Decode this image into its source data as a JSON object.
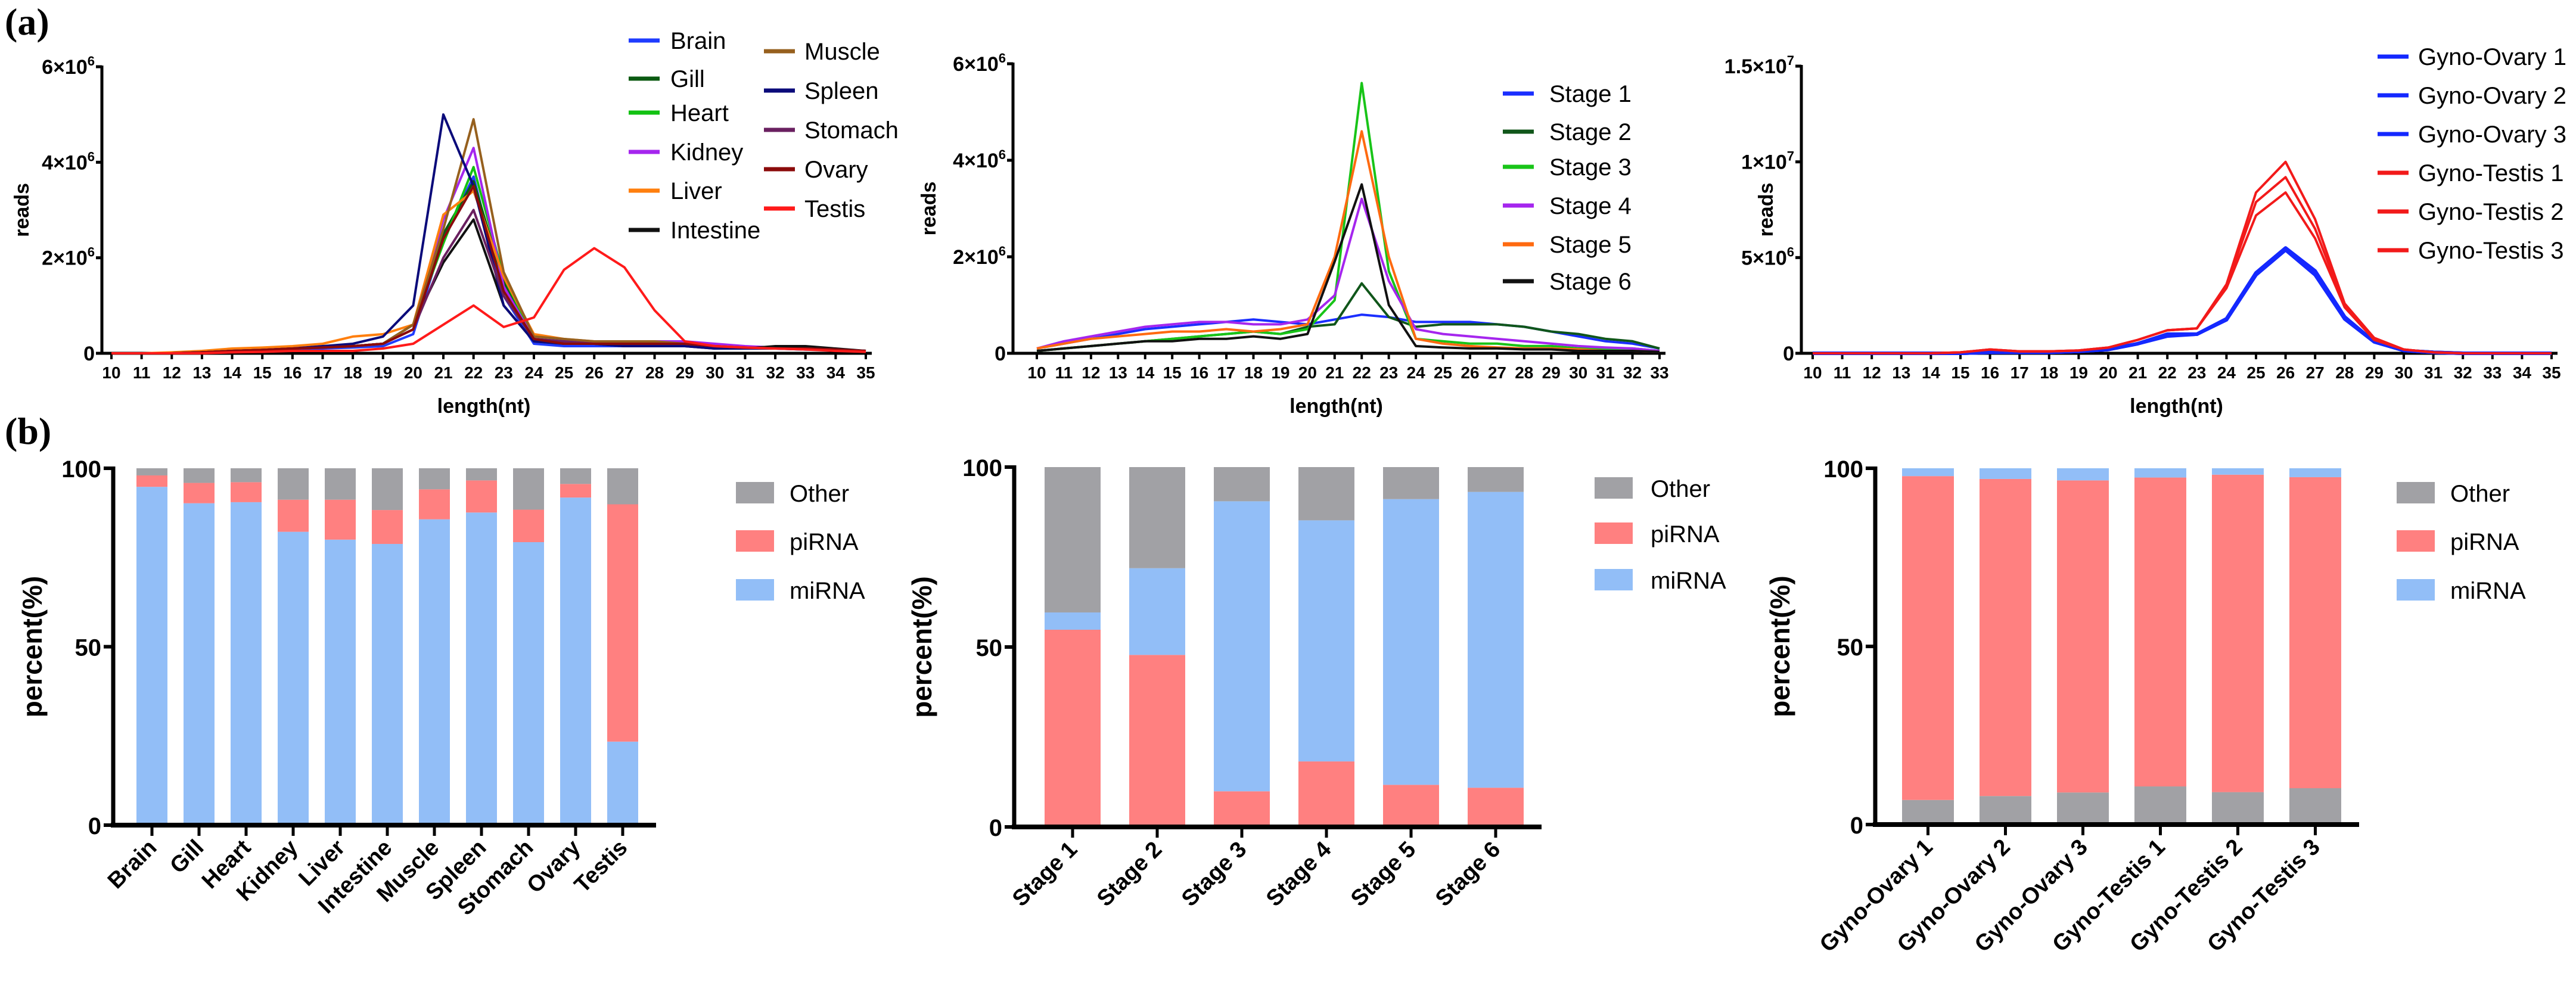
{
  "panel_labels": [
    "(a)",
    "(b)"
  ],
  "chart_data": [
    {
      "type": "line",
      "xlabel": "length(nt)",
      "ylabel": "reads",
      "x": [
        10,
        11,
        12,
        13,
        14,
        15,
        16,
        17,
        18,
        19,
        20,
        21,
        22,
        23,
        24,
        25,
        26,
        27,
        28,
        29,
        30,
        31,
        32,
        33,
        34,
        35
      ],
      "y_scale": 1000000,
      "ylim": [
        0,
        6000000
      ],
      "yticks": [
        {
          "value": 0,
          "label": "0",
          "sup": ""
        },
        {
          "value": 2000000,
          "label": "2×10",
          "sup": "6"
        },
        {
          "value": 4000000,
          "label": "4×10",
          "sup": "6"
        },
        {
          "value": 6000000,
          "label": "6×10",
          "sup": "6"
        }
      ],
      "legend_placement": "top-right",
      "series": [
        {
          "name": "Brain",
          "color": "#1f3cff",
          "values": [
            0,
            0,
            0,
            0.02,
            0.05,
            0.06,
            0.08,
            0.1,
            0.12,
            0.15,
            0.4,
            2.4,
            3.7,
            1.2,
            0.2,
            0.15,
            0.15,
            0.15,
            0.2,
            0.2,
            0.15,
            0.12,
            0.1,
            0.08,
            0.08,
            0.05
          ]
        },
        {
          "name": "Gill",
          "color": "#0b5a12",
          "values": [
            0,
            0,
            0,
            0.02,
            0.05,
            0.07,
            0.1,
            0.12,
            0.15,
            0.2,
            0.6,
            2.5,
            3.6,
            1.5,
            0.3,
            0.2,
            0.2,
            0.2,
            0.25,
            0.2,
            0.15,
            0.12,
            0.1,
            0.1,
            0.08,
            0.05
          ]
        },
        {
          "name": "Heart",
          "color": "#12c212",
          "values": [
            0,
            0,
            0,
            0.02,
            0.05,
            0.07,
            0.1,
            0.12,
            0.15,
            0.2,
            0.6,
            2.3,
            3.9,
            1.6,
            0.3,
            0.2,
            0.2,
            0.2,
            0.2,
            0.2,
            0.15,
            0.12,
            0.1,
            0.1,
            0.08,
            0.05
          ]
        },
        {
          "name": "Kidney",
          "color": "#a526ee",
          "values": [
            0,
            0,
            0,
            0.02,
            0.05,
            0.07,
            0.1,
            0.12,
            0.15,
            0.2,
            0.5,
            2.8,
            4.3,
            1.4,
            0.3,
            0.25,
            0.25,
            0.25,
            0.25,
            0.25,
            0.2,
            0.15,
            0.12,
            0.1,
            0.08,
            0.05
          ]
        },
        {
          "name": "Liver",
          "color": "#ff7f0e",
          "values": [
            0,
            0,
            0.02,
            0.05,
            0.1,
            0.12,
            0.15,
            0.2,
            0.35,
            0.4,
            0.6,
            2.9,
            3.4,
            1.6,
            0.4,
            0.3,
            0.25,
            0.2,
            0.2,
            0.2,
            0.15,
            0.12,
            0.1,
            0.1,
            0.08,
            0.05
          ]
        },
        {
          "name": "Intestine",
          "color": "#111111",
          "values": [
            0,
            0,
            0,
            0.02,
            0.05,
            0.07,
            0.1,
            0.12,
            0.15,
            0.2,
            0.6,
            1.9,
            2.8,
            1.0,
            0.25,
            0.2,
            0.2,
            0.15,
            0.15,
            0.15,
            0.1,
            0.1,
            0.15,
            0.15,
            0.1,
            0.05
          ]
        },
        {
          "name": "Muscle",
          "color": "#96601e",
          "values": [
            0,
            0,
            0,
            0.02,
            0.05,
            0.07,
            0.1,
            0.12,
            0.15,
            0.2,
            0.6,
            2.6,
            4.9,
            1.7,
            0.35,
            0.3,
            0.25,
            0.25,
            0.25,
            0.2,
            0.15,
            0.12,
            0.1,
            0.1,
            0.08,
            0.05
          ]
        },
        {
          "name": "Spleen",
          "color": "#0a0a7a",
          "values": [
            0,
            0,
            0,
            0.02,
            0.05,
            0.07,
            0.1,
            0.15,
            0.2,
            0.35,
            1.0,
            5.0,
            3.5,
            1.0,
            0.25,
            0.2,
            0.2,
            0.15,
            0.15,
            0.15,
            0.1,
            0.1,
            0.1,
            0.08,
            0.08,
            0.05
          ]
        },
        {
          "name": "Stomach",
          "color": "#6a2060",
          "values": [
            0,
            0,
            0,
            0.02,
            0.05,
            0.07,
            0.1,
            0.12,
            0.15,
            0.2,
            0.5,
            2.0,
            3.0,
            1.2,
            0.3,
            0.25,
            0.2,
            0.2,
            0.2,
            0.2,
            0.15,
            0.12,
            0.1,
            0.1,
            0.08,
            0.05
          ]
        },
        {
          "name": "Ovary",
          "color": "#8b0a0a",
          "values": [
            0,
            0,
            0,
            0.02,
            0.05,
            0.07,
            0.1,
            0.12,
            0.15,
            0.2,
            0.5,
            2.4,
            3.5,
            1.3,
            0.3,
            0.2,
            0.2,
            0.2,
            0.2,
            0.2,
            0.15,
            0.12,
            0.1,
            0.1,
            0.08,
            0.05
          ]
        },
        {
          "name": "Testis",
          "color": "#ff1a1a",
          "values": [
            0,
            0,
            0,
            0,
            0.02,
            0.03,
            0.05,
            0.05,
            0.05,
            0.1,
            0.2,
            0.6,
            1.0,
            0.55,
            0.75,
            1.75,
            2.2,
            1.8,
            0.9,
            0.25,
            0.15,
            0.12,
            0.1,
            0.08,
            0.05,
            0.03
          ]
        }
      ]
    },
    {
      "type": "line",
      "xlabel": "length(nt)",
      "ylabel": "reads",
      "x": [
        10,
        11,
        12,
        13,
        14,
        15,
        16,
        17,
        18,
        19,
        20,
        21,
        22,
        23,
        24,
        25,
        26,
        27,
        28,
        29,
        30,
        31,
        32,
        33
      ],
      "y_scale": 1000000,
      "ylim": [
        0,
        6000000
      ],
      "yticks": [
        {
          "value": 0,
          "label": "0",
          "sup": ""
        },
        {
          "value": 2000000,
          "label": "2×10",
          "sup": "6"
        },
        {
          "value": 4000000,
          "label": "4×10",
          "sup": "6"
        },
        {
          "value": 6000000,
          "label": "6×10",
          "sup": "6"
        }
      ],
      "legend_placement": "right",
      "series": [
        {
          "name": "Stage 1",
          "color": "#1a2eff",
          "values": [
            0.1,
            0.2,
            0.3,
            0.4,
            0.5,
            0.55,
            0.6,
            0.65,
            0.7,
            0.65,
            0.6,
            0.7,
            0.8,
            0.75,
            0.65,
            0.65,
            0.65,
            0.6,
            0.55,
            0.45,
            0.35,
            0.25,
            0.2,
            0.1
          ]
        },
        {
          "name": "Stage 2",
          "color": "#10561a",
          "values": [
            0.05,
            0.1,
            0.15,
            0.2,
            0.25,
            0.3,
            0.35,
            0.4,
            0.45,
            0.4,
            0.55,
            0.6,
            1.45,
            0.75,
            0.55,
            0.6,
            0.6,
            0.6,
            0.55,
            0.45,
            0.4,
            0.3,
            0.25,
            0.1
          ]
        },
        {
          "name": "Stage 3",
          "color": "#18c418",
          "values": [
            0.05,
            0.1,
            0.15,
            0.2,
            0.25,
            0.3,
            0.35,
            0.4,
            0.45,
            0.4,
            0.5,
            1.1,
            5.6,
            1.7,
            0.3,
            0.25,
            0.2,
            0.2,
            0.15,
            0.15,
            0.1,
            0.1,
            0.1,
            0.05
          ]
        },
        {
          "name": "Stage 4",
          "color": "#a526ee",
          "values": [
            0.1,
            0.25,
            0.35,
            0.45,
            0.55,
            0.6,
            0.65,
            0.65,
            0.6,
            0.6,
            0.7,
            1.2,
            3.2,
            1.5,
            0.5,
            0.4,
            0.35,
            0.3,
            0.25,
            0.2,
            0.15,
            0.12,
            0.1,
            0.05
          ]
        },
        {
          "name": "Stage 5",
          "color": "#ff6a10",
          "values": [
            0.1,
            0.2,
            0.3,
            0.35,
            0.4,
            0.45,
            0.45,
            0.5,
            0.45,
            0.5,
            0.6,
            2.0,
            4.6,
            2.0,
            0.3,
            0.2,
            0.15,
            0.12,
            0.1,
            0.1,
            0.08,
            0.05,
            0.05,
            0.03
          ]
        },
        {
          "name": "Stage 6",
          "color": "#111111",
          "values": [
            0.05,
            0.1,
            0.15,
            0.2,
            0.25,
            0.25,
            0.3,
            0.3,
            0.35,
            0.3,
            0.4,
            1.9,
            3.5,
            1.0,
            0.15,
            0.12,
            0.1,
            0.1,
            0.08,
            0.08,
            0.05,
            0.05,
            0.05,
            0.03
          ]
        }
      ]
    },
    {
      "type": "line",
      "xlabel": "length(nt)",
      "ylabel": "reads",
      "x": [
        10,
        11,
        12,
        13,
        14,
        15,
        16,
        17,
        18,
        19,
        20,
        21,
        22,
        23,
        24,
        25,
        26,
        27,
        28,
        29,
        30,
        31,
        32,
        33,
        34,
        35
      ],
      "y_scale": 1000000,
      "ylim": [
        0,
        15000000
      ],
      "yticks": [
        {
          "value": 0,
          "label": "0",
          "sup": ""
        },
        {
          "value": 5000000,
          "label": "5×10",
          "sup": "6"
        },
        {
          "value": 10000000,
          "label": "1×10",
          "sup": "7"
        },
        {
          "value": 15000000,
          "label": "1.5×10",
          "sup": "7"
        }
      ],
      "legend_placement": "top-right",
      "series": [
        {
          "name": "Gyno-Ovary 1",
          "color": "#1428ff",
          "values": [
            0,
            0,
            0,
            0,
            0,
            0,
            0.05,
            0.05,
            0.05,
            0.1,
            0.2,
            0.5,
            0.9,
            1.0,
            1.8,
            4.2,
            5.5,
            4.3,
            1.9,
            0.6,
            0.15,
            0.05,
            0,
            0,
            0,
            0
          ]
        },
        {
          "name": "Gyno-Ovary 2",
          "color": "#1428ff",
          "values": [
            0,
            0,
            0,
            0,
            0,
            0,
            0.05,
            0.05,
            0.05,
            0.1,
            0.2,
            0.5,
            1.0,
            1.0,
            1.8,
            4.2,
            5.5,
            4.2,
            1.8,
            0.6,
            0.15,
            0.05,
            0,
            0,
            0,
            0
          ]
        },
        {
          "name": "Gyno-Ovary 3",
          "color": "#1428ff",
          "values": [
            0,
            0,
            0,
            0,
            0,
            0,
            0.05,
            0.05,
            0.05,
            0.1,
            0.2,
            0.5,
            0.95,
            1.0,
            1.75,
            4.1,
            5.4,
            4.1,
            1.8,
            0.6,
            0.15,
            0.05,
            0,
            0,
            0,
            0
          ]
        },
        {
          "name": "Gyno-Testis 1",
          "color": "#f21a1a",
          "values": [
            0,
            0,
            0,
            0,
            0,
            0.05,
            0.2,
            0.1,
            0.1,
            0.15,
            0.3,
            0.7,
            1.2,
            1.3,
            3.6,
            8.4,
            10.0,
            7.0,
            2.6,
            0.8,
            0.2,
            0.05,
            0,
            0,
            0,
            0
          ]
        },
        {
          "name": "Gyno-Testis 2",
          "color": "#f21a1a",
          "values": [
            0,
            0,
            0,
            0,
            0,
            0.05,
            0.2,
            0.1,
            0.1,
            0.15,
            0.3,
            0.7,
            1.2,
            1.3,
            3.5,
            7.9,
            9.2,
            6.5,
            2.5,
            0.8,
            0.2,
            0.05,
            0,
            0,
            0,
            0
          ]
        },
        {
          "name": "Gyno-Testis 3",
          "color": "#f21a1a",
          "values": [
            0,
            0,
            0,
            0,
            0,
            0.05,
            0.2,
            0.1,
            0.1,
            0.15,
            0.3,
            0.7,
            1.2,
            1.3,
            3.4,
            7.2,
            8.4,
            6.0,
            2.4,
            0.7,
            0.2,
            0.05,
            0,
            0,
            0,
            0
          ]
        }
      ]
    },
    {
      "type": "bar",
      "stacked": true,
      "ylabel": "percent(%)",
      "ylim": [
        0,
        100
      ],
      "yticks": [
        "0",
        "50",
        "100"
      ],
      "categories": [
        "Brain",
        "Gill",
        "Heart",
        "Kidney",
        "Liver",
        "Intestine",
        "Muscle",
        "Spleen",
        "Stomach",
        "Ovary",
        "Testis"
      ],
      "legend": [
        "Other",
        "piRNA",
        "miRNA"
      ],
      "legend_placement": "top-right",
      "series": [
        {
          "name": "miRNA",
          "color": "#92bef7",
          "values": [
            94.8,
            90.2,
            90.5,
            82.2,
            80.0,
            78.8,
            85.7,
            87.6,
            79.3,
            91.8,
            23.4
          ]
        },
        {
          "name": "piRNA",
          "color": "#ff8080",
          "values": [
            3.2,
            5.7,
            5.6,
            9.0,
            11.2,
            9.5,
            8.4,
            9.0,
            9.1,
            3.8,
            66.5
          ]
        },
        {
          "name": "Other",
          "color": "#a1a1a5",
          "values": [
            2.0,
            4.1,
            3.9,
            8.8,
            8.8,
            11.7,
            5.9,
            3.4,
            11.6,
            4.4,
            10.1
          ]
        }
      ]
    },
    {
      "type": "bar",
      "stacked": true,
      "ylabel": "percent(%)",
      "ylim": [
        0,
        100
      ],
      "yticks": [
        "0",
        "50",
        "100"
      ],
      "categories": [
        "Stage 1",
        "Stage 2",
        "Stage 3",
        "Stage 4",
        "Stage 5",
        "Stage 6"
      ],
      "legend": [
        "Other",
        "piRNA",
        "miRNA"
      ],
      "legend_placement": "top-right",
      "series": [
        {
          "name": "piRNA",
          "color": "#ff8080",
          "values": [
            54.8,
            47.8,
            9.9,
            18.2,
            11.7,
            10.9
          ]
        },
        {
          "name": "miRNA",
          "color": "#92bef7",
          "values": [
            4.8,
            24.1,
            80.6,
            67.0,
            79.4,
            82.2
          ]
        },
        {
          "name": "Other",
          "color": "#a1a1a5",
          "values": [
            40.4,
            28.1,
            9.5,
            14.8,
            8.9,
            6.9
          ]
        }
      ]
    },
    {
      "type": "bar",
      "stacked": true,
      "ylabel": "percent(%)",
      "ylim": [
        0,
        100
      ],
      "yticks": [
        "0",
        "50",
        "100"
      ],
      "categories": [
        "Gyno-Ovary 1",
        "Gyno-Ovary 2",
        "Gyno-Ovary 3",
        "Gyno-Testis 1",
        "Gyno-Testis 2",
        "Gyno-Testis 3"
      ],
      "legend": [
        "Other",
        "piRNA",
        "miRNA"
      ],
      "legend_placement": "top-right",
      "series": [
        {
          "name": "Other",
          "color": "#a1a1a5",
          "values": [
            6.9,
            8.0,
            9.0,
            10.7,
            9.1,
            10.2
          ]
        },
        {
          "name": "piRNA",
          "color": "#ff8080",
          "values": [
            90.9,
            89.0,
            87.6,
            86.7,
            89.1,
            87.3
          ]
        },
        {
          "name": "miRNA",
          "color": "#92bef7",
          "values": [
            2.2,
            3.0,
            3.4,
            2.6,
            1.8,
            2.5
          ]
        }
      ]
    }
  ]
}
